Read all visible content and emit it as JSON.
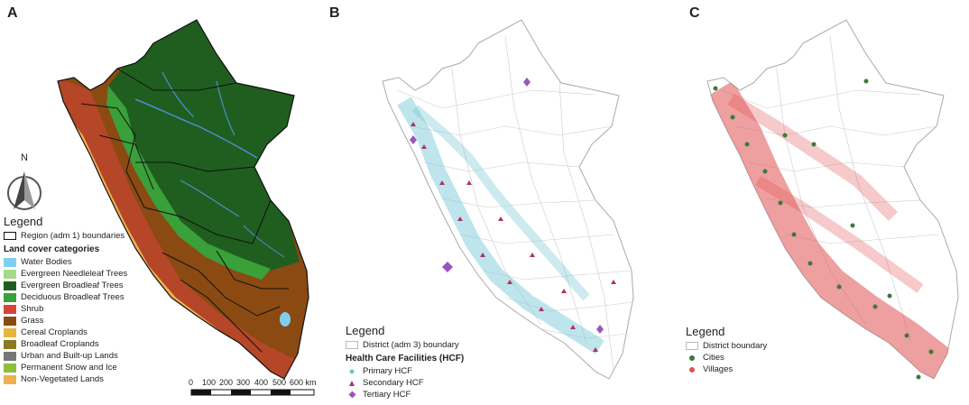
{
  "panel_a": {
    "letter": "A",
    "north_label": "N",
    "legend_title": "Legend",
    "region_boundary_label": "Region (adm 1) boundaries",
    "landcover_title": "Land cover categories",
    "categories": [
      {
        "label": "Water Bodies",
        "color": "#7fd0f0"
      },
      {
        "label": "Evergreen Needleleaf Trees",
        "color": "#a7d98a"
      },
      {
        "label": "Evergreen Broadleaf Trees",
        "color": "#1f5e1f"
      },
      {
        "label": "Deciduous Broadleaf Trees",
        "color": "#3aa03a"
      },
      {
        "label": "Shrub",
        "color": "#d9443a"
      },
      {
        "label": "Grass",
        "color": "#8b4a12"
      },
      {
        "label": "Cereal Croplands",
        "color": "#e8b43a"
      },
      {
        "label": "Broadleaf Croplands",
        "color": "#8a7a22"
      },
      {
        "label": "Urban and Built-up Lands",
        "color": "#777777"
      },
      {
        "label": "Permanent Snow and Ice",
        "color": "#8fbf3a"
      },
      {
        "label": "Non-Vegetated Lands",
        "color": "#f0b050"
      }
    ],
    "scale_labels": [
      "0",
      "100",
      "200",
      "300",
      "400",
      "500",
      "600 km"
    ]
  },
  "panel_b": {
    "letter": "B",
    "legend_title": "Legend",
    "district_boundary_label": "District (adm 3) boundary",
    "hcf_title": "Health Care Facilities (HCF)",
    "items": [
      {
        "label": "Primary HCF",
        "color": "#6fc6d2"
      },
      {
        "label": "Secondary HCF",
        "color": "#b0306a"
      },
      {
        "label": "Tertiary HCF",
        "color": "#9a55c0"
      }
    ]
  },
  "panel_c": {
    "letter": "C",
    "legend_title": "Legend",
    "district_boundary_label": "District boundary",
    "items": [
      {
        "label": "Cities",
        "color": "#3a7a3a"
      },
      {
        "label": "Villages",
        "color": "#e05050"
      }
    ]
  }
}
